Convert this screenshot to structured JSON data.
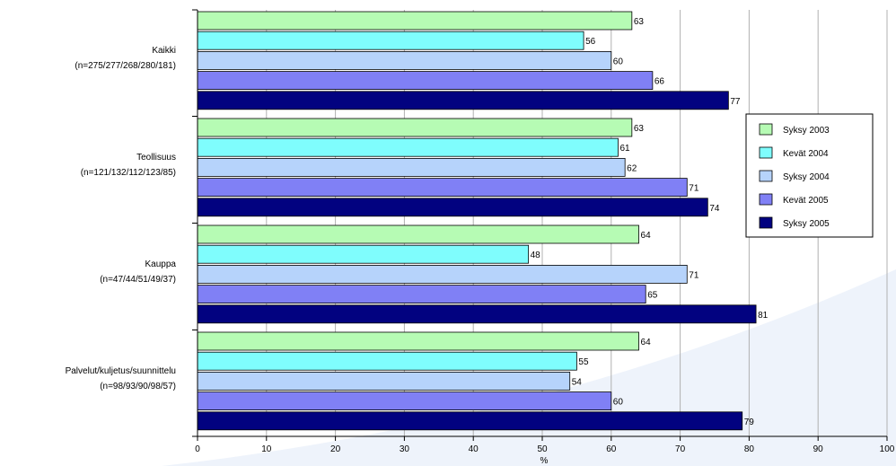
{
  "chart_data": {
    "type": "bar",
    "orientation": "horizontal",
    "xlabel": "%",
    "xlim": [
      0,
      100
    ],
    "xticks": [
      "0",
      "10",
      "20",
      "30",
      "40",
      "50",
      "60",
      "70",
      "80",
      "90",
      "100"
    ],
    "grid": "vertical",
    "legend_position": "right",
    "categories": [
      {
        "name": "Kaikki",
        "n": "(n=275/277/268/280/181)"
      },
      {
        "name": "Teollisuus",
        "n": "(n=121/132/112/123/85)"
      },
      {
        "name": "Kauppa",
        "n": "(n=47/44/51/49/37)"
      },
      {
        "name": "Palvelut/kuljetus/suunnittelu",
        "n": "(n=98/93/90/98/57)"
      }
    ],
    "series": [
      {
        "name": "Syksy 2003",
        "color": "#b6fbb4",
        "values": [
          63,
          63,
          64,
          64
        ]
      },
      {
        "name": "Kevät 2004",
        "color": "#7ffdfd",
        "values": [
          56,
          61,
          48,
          55
        ]
      },
      {
        "name": "Syksy 2004",
        "color": "#b6d3fb",
        "values": [
          60,
          62,
          71,
          54
        ]
      },
      {
        "name": "Kevät 2005",
        "color": "#8080f5",
        "values": [
          66,
          71,
          65,
          60
        ]
      },
      {
        "name": "Syksy 2005",
        "color": "#020280",
        "values": [
          77,
          74,
          81,
          79
        ]
      }
    ]
  }
}
